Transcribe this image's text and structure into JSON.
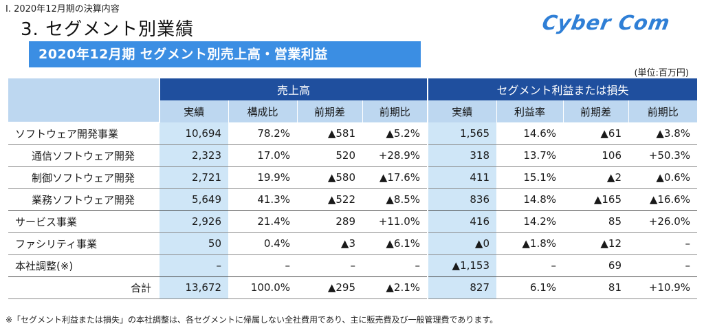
{
  "breadcrumb": "Ⅰ. 2020年12月期の決算内容",
  "title": "3. セグメント別業績",
  "logo": "Cyber Com",
  "subtitle": "2020年12月期 セグメント別売上高・営業利益",
  "unit_note": "(単位:百万円)",
  "table": {
    "group_headers": [
      "売上高",
      "セグメント利益または損失"
    ],
    "columns": [
      "実績",
      "構成比",
      "前期差",
      "前期比",
      "実績",
      "利益率",
      "前期差",
      "前期比"
    ],
    "rows": [
      {
        "label": "ソフトウェア開発事業",
        "values": [
          "10,694",
          "78.2%",
          "▲581",
          "▲5.2%",
          "1,565",
          "14.6%",
          "▲61",
          "▲3.8%"
        ]
      },
      {
        "label": "通信ソフトウェア開発",
        "values": [
          "2,323",
          "17.0%",
          "520",
          "+28.9%",
          "318",
          "13.7%",
          "106",
          "+50.3%"
        ]
      },
      {
        "label": "制御ソフトウェア開発",
        "values": [
          "2,721",
          "19.9%",
          "▲580",
          "▲17.6%",
          "411",
          "15.1%",
          "▲2",
          "▲0.6%"
        ]
      },
      {
        "label": "業務ソフトウェア開発",
        "values": [
          "5,649",
          "41.3%",
          "▲522",
          "▲8.5%",
          "836",
          "14.8%",
          "▲165",
          "▲16.6%"
        ]
      },
      {
        "label": "サービス事業",
        "values": [
          "2,926",
          "21.4%",
          "289",
          "+11.0%",
          "416",
          "14.2%",
          "85",
          "+26.0%"
        ]
      },
      {
        "label": "ファシリティ事業",
        "values": [
          "50",
          "0.4%",
          "▲3",
          "▲6.1%",
          "▲0",
          "▲1.8%",
          "▲12",
          "–"
        ]
      },
      {
        "label": "本社調整(※)",
        "values": [
          "–",
          "–",
          "–",
          "–",
          "▲1,153",
          "–",
          "69",
          "–"
        ]
      },
      {
        "label": "合計",
        "values": [
          "13,672",
          "100.0%",
          "▲295",
          "▲2.1%",
          "827",
          "6.1%",
          "81",
          "+10.9%"
        ]
      }
    ]
  },
  "footnote": "※「セグメント利益または損失」の本社調整は、各セグメントに帰属しない全社費用であり、主に販売費及び一般管理費であります。"
}
